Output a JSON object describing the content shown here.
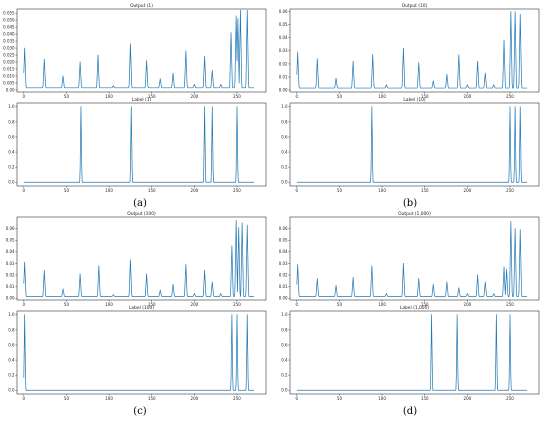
{
  "chart_data": [
    {
      "type": "line",
      "title": "Output (1)",
      "xlim": [
        -8,
        284
      ],
      "ylim": [
        -0.0015,
        0.058
      ],
      "x_ticks": [
        0,
        50,
        100,
        150,
        200,
        250
      ],
      "y_ticks": [
        0.0,
        0.005,
        0.01,
        0.015,
        0.02,
        0.025,
        0.03,
        0.035,
        0.04,
        0.045,
        0.05,
        0.055
      ],
      "y_tick_labels": [
        "0.00",
        "0.005",
        "0.010",
        "0.015",
        "0.020",
        "0.025",
        "0.030",
        "0.035",
        "0.040",
        "0.045",
        "0.050",
        "0.055"
      ],
      "baseline": 0.0015,
      "series": [
        {
          "color": "#1f77b4",
          "peaks": [
            {
              "x": 1,
              "y": 0.03
            },
            {
              "x": 24,
              "y": 0.022
            },
            {
              "x": 46,
              "y": 0.01
            },
            {
              "x": 66,
              "y": 0.02
            },
            {
              "x": 87,
              "y": 0.025
            },
            {
              "x": 105,
              "y": 0.003
            },
            {
              "x": 125,
              "y": 0.033
            },
            {
              "x": 144,
              "y": 0.021
            },
            {
              "x": 160,
              "y": 0.008
            },
            {
              "x": 175,
              "y": 0.012
            },
            {
              "x": 190,
              "y": 0.028
            },
            {
              "x": 200,
              "y": 0.004
            },
            {
              "x": 212,
              "y": 0.024
            },
            {
              "x": 221,
              "y": 0.014
            },
            {
              "x": 231,
              "y": 0.004
            },
            {
              "x": 243,
              "y": 0.041
            },
            {
              "x": 249,
              "y": 0.053
            },
            {
              "x": 251,
              "y": 0.051
            },
            {
              "x": 254,
              "y": 0.057
            },
            {
              "x": 262,
              "y": 0.057
            }
          ]
        }
      ]
    },
    {
      "type": "line",
      "title": "Label (1)",
      "xlim": [
        -8,
        284
      ],
      "ylim": [
        -0.05,
        1.05
      ],
      "x_ticks": [
        0,
        50,
        100,
        150,
        200,
        250
      ],
      "y_ticks": [
        0.0,
        0.2,
        0.4,
        0.6,
        0.8,
        1.0
      ],
      "y_tick_labels": [
        "0.0",
        "0.2",
        "0.4",
        "0.6",
        "0.8",
        "1.0"
      ],
      "baseline": 0,
      "series": [
        {
          "color": "#1f77b4",
          "peaks": [
            {
              "x": 67,
              "y": 1
            },
            {
              "x": 126,
              "y": 1
            },
            {
              "x": 212,
              "y": 1
            },
            {
              "x": 221,
              "y": 1
            },
            {
              "x": 250,
              "y": 1
            }
          ]
        }
      ]
    },
    {
      "type": "line",
      "title": "Output (10)",
      "xlim": [
        -8,
        284
      ],
      "ylim": [
        -0.0015,
        0.062
      ],
      "x_ticks": [
        0,
        50,
        100,
        150,
        200,
        250
      ],
      "y_ticks": [
        0.0,
        0.01,
        0.02,
        0.03,
        0.04,
        0.05,
        0.06
      ],
      "y_tick_labels": [
        "0.00",
        "0.01",
        "0.02",
        "0.03",
        "0.04",
        "0.05",
        "0.06"
      ],
      "baseline": 0.0015,
      "series": [
        {
          "color": "#1f77b4",
          "peaks": [
            {
              "x": 1,
              "y": 0.029
            },
            {
              "x": 24,
              "y": 0.024
            },
            {
              "x": 46,
              "y": 0.009
            },
            {
              "x": 66,
              "y": 0.022
            },
            {
              "x": 89,
              "y": 0.027
            },
            {
              "x": 105,
              "y": 0.004
            },
            {
              "x": 125,
              "y": 0.032
            },
            {
              "x": 143,
              "y": 0.021
            },
            {
              "x": 160,
              "y": 0.007
            },
            {
              "x": 176,
              "y": 0.012
            },
            {
              "x": 190,
              "y": 0.027
            },
            {
              "x": 200,
              "y": 0.004
            },
            {
              "x": 212,
              "y": 0.022
            },
            {
              "x": 221,
              "y": 0.013
            },
            {
              "x": 231,
              "y": 0.004
            },
            {
              "x": 243,
              "y": 0.038
            },
            {
              "x": 251,
              "y": 0.06
            },
            {
              "x": 256,
              "y": 0.06
            },
            {
              "x": 262,
              "y": 0.058
            }
          ]
        }
      ]
    },
    {
      "type": "line",
      "title": "Label (10)",
      "xlim": [
        -8,
        284
      ],
      "ylim": [
        -0.05,
        1.05
      ],
      "x_ticks": [
        0,
        50,
        100,
        150,
        200,
        250
      ],
      "y_ticks": [
        0.0,
        0.2,
        0.4,
        0.6,
        0.8,
        1.0
      ],
      "y_tick_labels": [
        "0.0",
        "0.2",
        "0.4",
        "0.6",
        "0.8",
        "1.0"
      ],
      "baseline": 0,
      "series": [
        {
          "color": "#1f77b4",
          "peaks": [
            {
              "x": 88,
              "y": 1
            },
            {
              "x": 250,
              "y": 1
            },
            {
              "x": 256,
              "y": 1
            },
            {
              "x": 262,
              "y": 1
            }
          ]
        }
      ]
    },
    {
      "type": "line",
      "title": "Output (100)",
      "xlim": [
        -8,
        284
      ],
      "ylim": [
        -0.0015,
        0.07
      ],
      "x_ticks": [
        0,
        50,
        100,
        150,
        200,
        250
      ],
      "y_ticks": [
        0.0,
        0.01,
        0.02,
        0.03,
        0.04,
        0.05,
        0.06
      ],
      "y_tick_labels": [
        "0.00",
        "0.01",
        "0.02",
        "0.03",
        "0.04",
        "0.05",
        "0.06"
      ],
      "baseline": 0.0015,
      "series": [
        {
          "color": "#1f77b4",
          "peaks": [
            {
              "x": 1,
              "y": 0.031
            },
            {
              "x": 24,
              "y": 0.024
            },
            {
              "x": 46,
              "y": 0.008
            },
            {
              "x": 66,
              "y": 0.021
            },
            {
              "x": 88,
              "y": 0.028
            },
            {
              "x": 105,
              "y": 0.003
            },
            {
              "x": 125,
              "y": 0.033
            },
            {
              "x": 144,
              "y": 0.021
            },
            {
              "x": 160,
              "y": 0.007
            },
            {
              "x": 175,
              "y": 0.012
            },
            {
              "x": 190,
              "y": 0.029
            },
            {
              "x": 200,
              "y": 0.004
            },
            {
              "x": 212,
              "y": 0.024
            },
            {
              "x": 221,
              "y": 0.014
            },
            {
              "x": 231,
              "y": 0.004
            },
            {
              "x": 244,
              "y": 0.045
            },
            {
              "x": 249,
              "y": 0.067
            },
            {
              "x": 252,
              "y": 0.061
            },
            {
              "x": 256,
              "y": 0.065
            },
            {
              "x": 262,
              "y": 0.063
            }
          ]
        }
      ]
    },
    {
      "type": "line",
      "title": "Label (100)",
      "xlim": [
        -8,
        284
      ],
      "ylim": [
        -0.05,
        1.05
      ],
      "x_ticks": [
        0,
        50,
        100,
        150,
        200,
        250
      ],
      "y_ticks": [
        0.0,
        0.2,
        0.4,
        0.6,
        0.8,
        1.0
      ],
      "y_tick_labels": [
        "0.0",
        "0.2",
        "0.4",
        "0.6",
        "0.8",
        "1.0"
      ],
      "baseline": 0,
      "series": [
        {
          "color": "#1f77b4",
          "peaks": [
            {
              "x": 1,
              "y": 1
            },
            {
              "x": 244,
              "y": 1
            },
            {
              "x": 250,
              "y": 1
            },
            {
              "x": 262,
              "y": 1
            }
          ]
        }
      ]
    },
    {
      "type": "line",
      "title": "Output (1,000)",
      "xlim": [
        -8,
        284
      ],
      "ylim": [
        -0.0015,
        0.07
      ],
      "x_ticks": [
        0,
        50,
        100,
        150,
        200,
        250
      ],
      "y_ticks": [
        0.0,
        0.01,
        0.02,
        0.03,
        0.04,
        0.05,
        0.06
      ],
      "y_tick_labels": [
        "0.00",
        "0.01",
        "0.02",
        "0.03",
        "0.04",
        "0.05",
        "0.06"
      ],
      "baseline": 0.0015,
      "series": [
        {
          "color": "#1f77b4",
          "peaks": [
            {
              "x": 1,
              "y": 0.029
            },
            {
              "x": 24,
              "y": 0.017
            },
            {
              "x": 46,
              "y": 0.011
            },
            {
              "x": 66,
              "y": 0.018
            },
            {
              "x": 88,
              "y": 0.028
            },
            {
              "x": 105,
              "y": 0.004
            },
            {
              "x": 125,
              "y": 0.03
            },
            {
              "x": 143,
              "y": 0.017
            },
            {
              "x": 160,
              "y": 0.012
            },
            {
              "x": 176,
              "y": 0.014
            },
            {
              "x": 190,
              "y": 0.009
            },
            {
              "x": 200,
              "y": 0.004
            },
            {
              "x": 212,
              "y": 0.02
            },
            {
              "x": 221,
              "y": 0.014
            },
            {
              "x": 231,
              "y": 0.004
            },
            {
              "x": 243,
              "y": 0.027
            },
            {
              "x": 246,
              "y": 0.025
            },
            {
              "x": 251,
              "y": 0.066
            },
            {
              "x": 256,
              "y": 0.06
            },
            {
              "x": 262,
              "y": 0.059
            }
          ]
        }
      ]
    },
    {
      "type": "line",
      "title": "Label (1,000)",
      "xlim": [
        -8,
        284
      ],
      "ylim": [
        -0.05,
        1.05
      ],
      "x_ticks": [
        0,
        50,
        100,
        150,
        200,
        250
      ],
      "y_ticks": [
        0.0,
        0.2,
        0.4,
        0.6,
        0.8,
        1.0
      ],
      "y_tick_labels": [
        "0.0",
        "0.2",
        "0.4",
        "0.6",
        "0.8",
        "1.0"
      ],
      "baseline": 0,
      "series": [
        {
          "color": "#1f77b4",
          "peaks": [
            {
              "x": 158,
              "y": 1
            },
            {
              "x": 188,
              "y": 1
            },
            {
              "x": 234,
              "y": 1
            },
            {
              "x": 250,
              "y": 1
            }
          ]
        }
      ]
    }
  ],
  "captions": [
    "(a)",
    "(b)",
    "(c)",
    "(d)"
  ]
}
